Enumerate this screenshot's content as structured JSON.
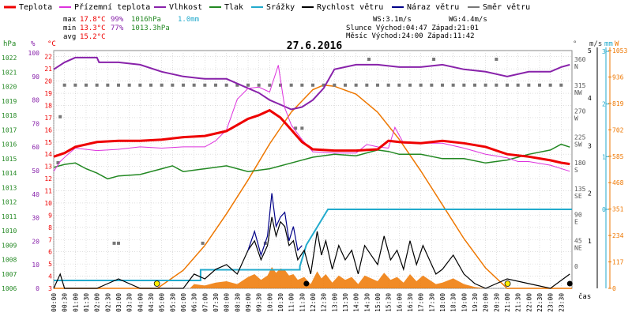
{
  "chart_data": {
    "type": "line",
    "title": "27.6.2016",
    "legend": {
      "placement": "top",
      "items": [
        {
          "label": "Teplota",
          "color": "#ee0000"
        },
        {
          "label": "Přízemní teplota",
          "color": "#dd33dd"
        },
        {
          "label": "Vlhkost",
          "color": "#8822aa"
        },
        {
          "label": "Tlak",
          "color": "#228822"
        },
        {
          "label": "Srážky",
          "color": "#22aacc"
        },
        {
          "label": "Rychlost větru",
          "color": "#000000"
        },
        {
          "label": "Náraz větru",
          "color": "#000088"
        },
        {
          "label": "Směr větru",
          "color": "#777777"
        }
      ]
    },
    "stats": {
      "max_label": "max",
      "min_label": "min",
      "avg_label": "avg",
      "max_temp": "17.8°C",
      "max_hum": "99%",
      "max_press": "1016hPa",
      "max_rain": "1.0mm",
      "min_temp": "13.3°C",
      "min_hum": "77%",
      "min_press": "1013.3hPa",
      "avg_temp": "15.2°C",
      "ws": "WS:3.1m/s",
      "wg": "WG:4.4m/s",
      "sun": "Slunce Východ:04:47    Západ:21:01",
      "moon": "Měsíc  Východ:24:00    Západ:11:42"
    },
    "axes": {
      "hpa_label": "hPa",
      "pct_label": "%",
      "degc_label": "°C",
      "deg_label": "°",
      "ms_label": "m/s",
      "mm_label": "mm",
      "w_label": "W",
      "x_label": "čas",
      "hpa_ticks": [
        "1022",
        "1021",
        "1020",
        "1019",
        "1018",
        "1017",
        "1016",
        "1015",
        "1014",
        "1013",
        "1012",
        "1011",
        "1010",
        "1009",
        "1008",
        "1007",
        "1006"
      ],
      "pct_ticks": [
        "100",
        "90",
        "80",
        "70",
        "60",
        "50",
        "40",
        "30",
        "20",
        "10",
        "0"
      ],
      "degc_ticks": [
        "22",
        "21",
        "20",
        "19",
        "18",
        "17",
        "16",
        "15",
        "14",
        "13",
        "12",
        "11",
        "10",
        "9",
        "8",
        "7",
        "6",
        "5",
        "4",
        "3"
      ],
      "dir_ticks": [
        {
          "v": 360,
          "label": "360",
          "dir": "N"
        },
        {
          "v": 315,
          "label": "315",
          "dir": "NW"
        },
        {
          "v": 270,
          "label": "270",
          "dir": "W"
        },
        {
          "v": 225,
          "label": "225",
          "dir": "SW"
        },
        {
          "v": 180,
          "label": "180",
          "dir": "S"
        },
        {
          "v": 135,
          "label": "135",
          "dir": "SE"
        },
        {
          "v": 90,
          "label": "90",
          "dir": "E"
        },
        {
          "v": 45,
          "label": "45",
          "dir": "NE"
        },
        {
          "v": 0,
          "label": "0",
          "dir": ""
        }
      ],
      "ms_ticks": [
        "3",
        "2",
        "1",
        "0"
      ],
      "ms_small_ticks": [
        "5",
        "4",
        "3",
        "2",
        "1"
      ],
      "mm_ticks": [
        "3",
        "2",
        "1",
        "0"
      ],
      "w_ticks": [
        "1053",
        "936",
        "819",
        "702",
        "585",
        "468",
        "351",
        "234",
        "117",
        "0"
      ],
      "time_ticks": [
        "00:00",
        "00:30",
        "01:00",
        "01:30",
        "02:00",
        "02:30",
        "03:00",
        "03:30",
        "04:00",
        "04:30",
        "05:00",
        "05:30",
        "06:00",
        "06:30",
        "07:00",
        "07:30",
        "08:00",
        "08:30",
        "09:00",
        "09:30",
        "10:00",
        "10:30",
        "11:00",
        "11:30",
        "12:00",
        "12:30",
        "13:00",
        "13:30",
        "14:00",
        "14:30",
        "15:00",
        "15:30",
        "16:00",
        "16:30",
        "17:00",
        "17:30",
        "18:00",
        "18:30",
        "19:00",
        "19:30",
        "20:00",
        "20:30",
        "21:00",
        "21:30",
        "22:00",
        "22:30",
        "23:00",
        "23:30"
      ]
    },
    "series": [
      {
        "name": "Teplota",
        "unit": "°C",
        "x": [
          0,
          0.5,
          1,
          2,
          3,
          4,
          5,
          6,
          7,
          8,
          9,
          9.5,
          10,
          10.5,
          11,
          11.5,
          12,
          13,
          14,
          15,
          15.5,
          16,
          17,
          18,
          19,
          20,
          21,
          22,
          23,
          23.5,
          23.9
        ],
        "values": [
          13.8,
          14.1,
          14.6,
          15.0,
          15.1,
          15.1,
          15.2,
          15.4,
          15.5,
          15.9,
          16.9,
          17.2,
          17.6,
          17.0,
          16.0,
          15.0,
          14.4,
          14.3,
          14.3,
          14.4,
          15.1,
          15.0,
          14.9,
          15.1,
          14.9,
          14.6,
          14.0,
          13.8,
          13.5,
          13.3,
          13.2
        ]
      },
      {
        "name": "Přízemní teplota",
        "unit": "°C",
        "x": [
          0,
          0.3,
          0.6,
          1,
          2,
          3,
          4,
          5,
          6,
          7,
          7.5,
          8,
          8.5,
          9,
          9.5,
          10,
          10.4,
          10.7,
          11,
          11.5,
          12,
          13,
          14,
          14.5,
          15,
          15.5,
          15.8,
          16.2,
          17,
          18,
          19,
          20,
          21,
          21.5,
          22,
          23,
          23.9
        ],
        "values": [
          12.6,
          13.4,
          13.9,
          14.5,
          14.3,
          14.4,
          14.6,
          14.5,
          14.6,
          14.6,
          15.1,
          16.0,
          18.5,
          19.4,
          19.5,
          19.1,
          21.3,
          17.8,
          16.4,
          15.2,
          14.2,
          14.1,
          14.1,
          14.8,
          14.6,
          14.5,
          16.2,
          14.9,
          14.9,
          14.9,
          14.5,
          14.0,
          13.7,
          13.4,
          13.4,
          13.1,
          12.6
        ]
      },
      {
        "name": "Vlhkost",
        "unit": "%",
        "x": [
          0,
          0.5,
          1,
          2,
          2.1,
          3,
          4,
          5,
          6,
          7,
          8,
          9,
          9.5,
          10,
          10.5,
          11,
          11.5,
          12,
          12.5,
          13,
          14,
          15,
          16,
          17,
          18,
          19,
          20,
          21,
          22,
          23,
          23.5,
          23.9
        ],
        "values": [
          93,
          96,
          98,
          98,
          96,
          96,
          95,
          92,
          90,
          89,
          89,
          85,
          83,
          80,
          78,
          76,
          77,
          80,
          85,
          93,
          95,
          95,
          94,
          94,
          95,
          93,
          92,
          90,
          92,
          92,
          94,
          95
        ]
      },
      {
        "name": "Tlak",
        "unit": "hPa",
        "x": [
          0,
          0.5,
          1,
          1.5,
          2,
          2.5,
          3,
          4,
          5,
          5.5,
          6,
          7,
          8,
          9,
          10,
          11,
          12,
          13,
          14,
          15,
          15.5,
          16,
          17,
          18,
          19,
          20,
          21,
          22,
          23,
          23.5,
          23.9
        ],
        "values": [
          1014.4,
          1014.6,
          1014.7,
          1014.3,
          1014.0,
          1013.6,
          1013.8,
          1013.9,
          1014.3,
          1014.5,
          1014.1,
          1014.3,
          1014.5,
          1014.1,
          1014.3,
          1014.7,
          1015.1,
          1015.3,
          1015.2,
          1015.6,
          1015.5,
          1015.3,
          1015.3,
          1015.0,
          1015.0,
          1014.7,
          1014.9,
          1015.3,
          1015.6,
          1016.0,
          1015.8
        ]
      },
      {
        "name": "Srážky",
        "unit": "mm",
        "x": [
          0,
          6.8,
          6.8,
          11.4,
          11.4,
          11.7,
          12.7,
          12.7,
          24
        ],
        "values": [
          0,
          0,
          0.15,
          0.15,
          0.2,
          0.5,
          1.0,
          1.0,
          1.0
        ]
      },
      {
        "name": "Rychlost větru",
        "unit": "m/s",
        "x": [
          0,
          0.3,
          0.5,
          1,
          2,
          3,
          4,
          5,
          6,
          6.5,
          7,
          7.5,
          8,
          8.5,
          9,
          9.3,
          9.6,
          9.9,
          10.1,
          10.3,
          10.5,
          10.7,
          10.9,
          11.1,
          11.3,
          11.6,
          11.9,
          12.2,
          12.4,
          12.6,
          12.9,
          13.2,
          13.5,
          13.8,
          14.1,
          14.4,
          14.7,
          15,
          15.3,
          15.6,
          15.9,
          16.2,
          16.5,
          16.8,
          17.1,
          17.4,
          17.7,
          18,
          18.5,
          19,
          19.5,
          20,
          21,
          22,
          23,
          23.9
        ],
        "values": [
          0,
          0.3,
          0,
          0,
          0,
          0.2,
          0,
          0,
          0,
          0.3,
          0.2,
          0.4,
          0.5,
          0.3,
          0.8,
          1.0,
          0.6,
          0.9,
          1.5,
          1.1,
          1.4,
          1.3,
          0.9,
          1.0,
          0.6,
          0.8,
          0.3,
          1.2,
          0.7,
          1.0,
          0.4,
          0.9,
          0.6,
          0.8,
          0.3,
          0.9,
          0.7,
          0.5,
          1.1,
          0.6,
          0.8,
          0.4,
          1.0,
          0.5,
          0.9,
          0.6,
          0.3,
          0.4,
          0.7,
          0.3,
          0.1,
          0,
          0.2,
          0.1,
          0,
          0.3
        ]
      },
      {
        "name": "Náraz větru",
        "unit": "m/s",
        "x": [
          9.0,
          9.3,
          9.6,
          9.9,
          10.1,
          10.3,
          10.5,
          10.7,
          10.9,
          11.1,
          11.3,
          11.5
        ],
        "values": [
          0.8,
          1.2,
          0.7,
          1.1,
          2.0,
          1.3,
          1.5,
          1.6,
          1.0,
          1.3,
          0.8,
          0.9
        ]
      },
      {
        "name": "Směr větru",
        "unit": "°",
        "x": [
          0.5,
          1,
          1.5,
          2,
          2.5,
          3,
          3.5,
          4,
          4.5,
          5,
          5.5,
          6,
          6.5,
          7,
          7.5,
          8,
          8.5,
          9,
          9.5,
          10,
          10.5,
          11,
          11.5,
          12,
          12.5,
          13,
          13.5,
          14,
          14.5,
          15,
          15.5,
          16,
          16.5,
          17,
          17.5,
          18,
          18.5,
          19,
          19.5,
          20,
          20.5,
          21,
          21.5,
          22,
          22.5,
          23,
          23.5,
          0.2,
          0.3,
          2.8,
          3.0,
          6.9,
          9.8,
          11.2,
          11.5,
          14.6,
          17.6,
          20.5
        ],
        "values": [
          315,
          315,
          315,
          315,
          315,
          315,
          315,
          315,
          315,
          315,
          315,
          315,
          315,
          315,
          315,
          315,
          315,
          315,
          315,
          315,
          315,
          315,
          315,
          315,
          315,
          315,
          315,
          315,
          315,
          315,
          315,
          315,
          315,
          315,
          315,
          315,
          315,
          315,
          315,
          315,
          315,
          315,
          315,
          315,
          315,
          315,
          315,
          180,
          260,
          40,
          40,
          40,
          40,
          240,
          240,
          360,
          360,
          360
        ]
      },
      {
        "name": "Solar",
        "unit": "W",
        "x": [
          0,
          4.8,
          6,
          7,
          8,
          9,
          10,
          11,
          12,
          12.5,
          13,
          14,
          15,
          16,
          17,
          18,
          19,
          20,
          21.0,
          24
        ],
        "values": [
          0,
          0,
          80,
          190,
          330,
          480,
          640,
          780,
          880,
          900,
          895,
          860,
          780,
          660,
          520,
          370,
          220,
          90,
          0,
          0
        ]
      }
    ],
    "ylim_temp": [
      3,
      22.5
    ],
    "ylim_pct": [
      0,
      101
    ],
    "ylim_hpa": [
      1006,
      1022.5
    ],
    "ylim_dir": [
      0,
      360
    ],
    "ylim_ms": [
      0,
      5
    ],
    "ylim_mm": [
      0,
      3
    ],
    "ylim_w": [
      0,
      1053
    ],
    "xlim": [
      0,
      24
    ],
    "grid": true,
    "colors": {
      "temp": "#ee0000",
      "ground": "#dd33dd",
      "humidity": "#8822aa",
      "pressure": "#228822",
      "rain": "#22aacc",
      "wind": "#000000",
      "gust": "#000088",
      "direction": "#777777",
      "solar": "#ee7700",
      "grid": "#cccccc",
      "sun_marker": "#ffee00"
    }
  }
}
